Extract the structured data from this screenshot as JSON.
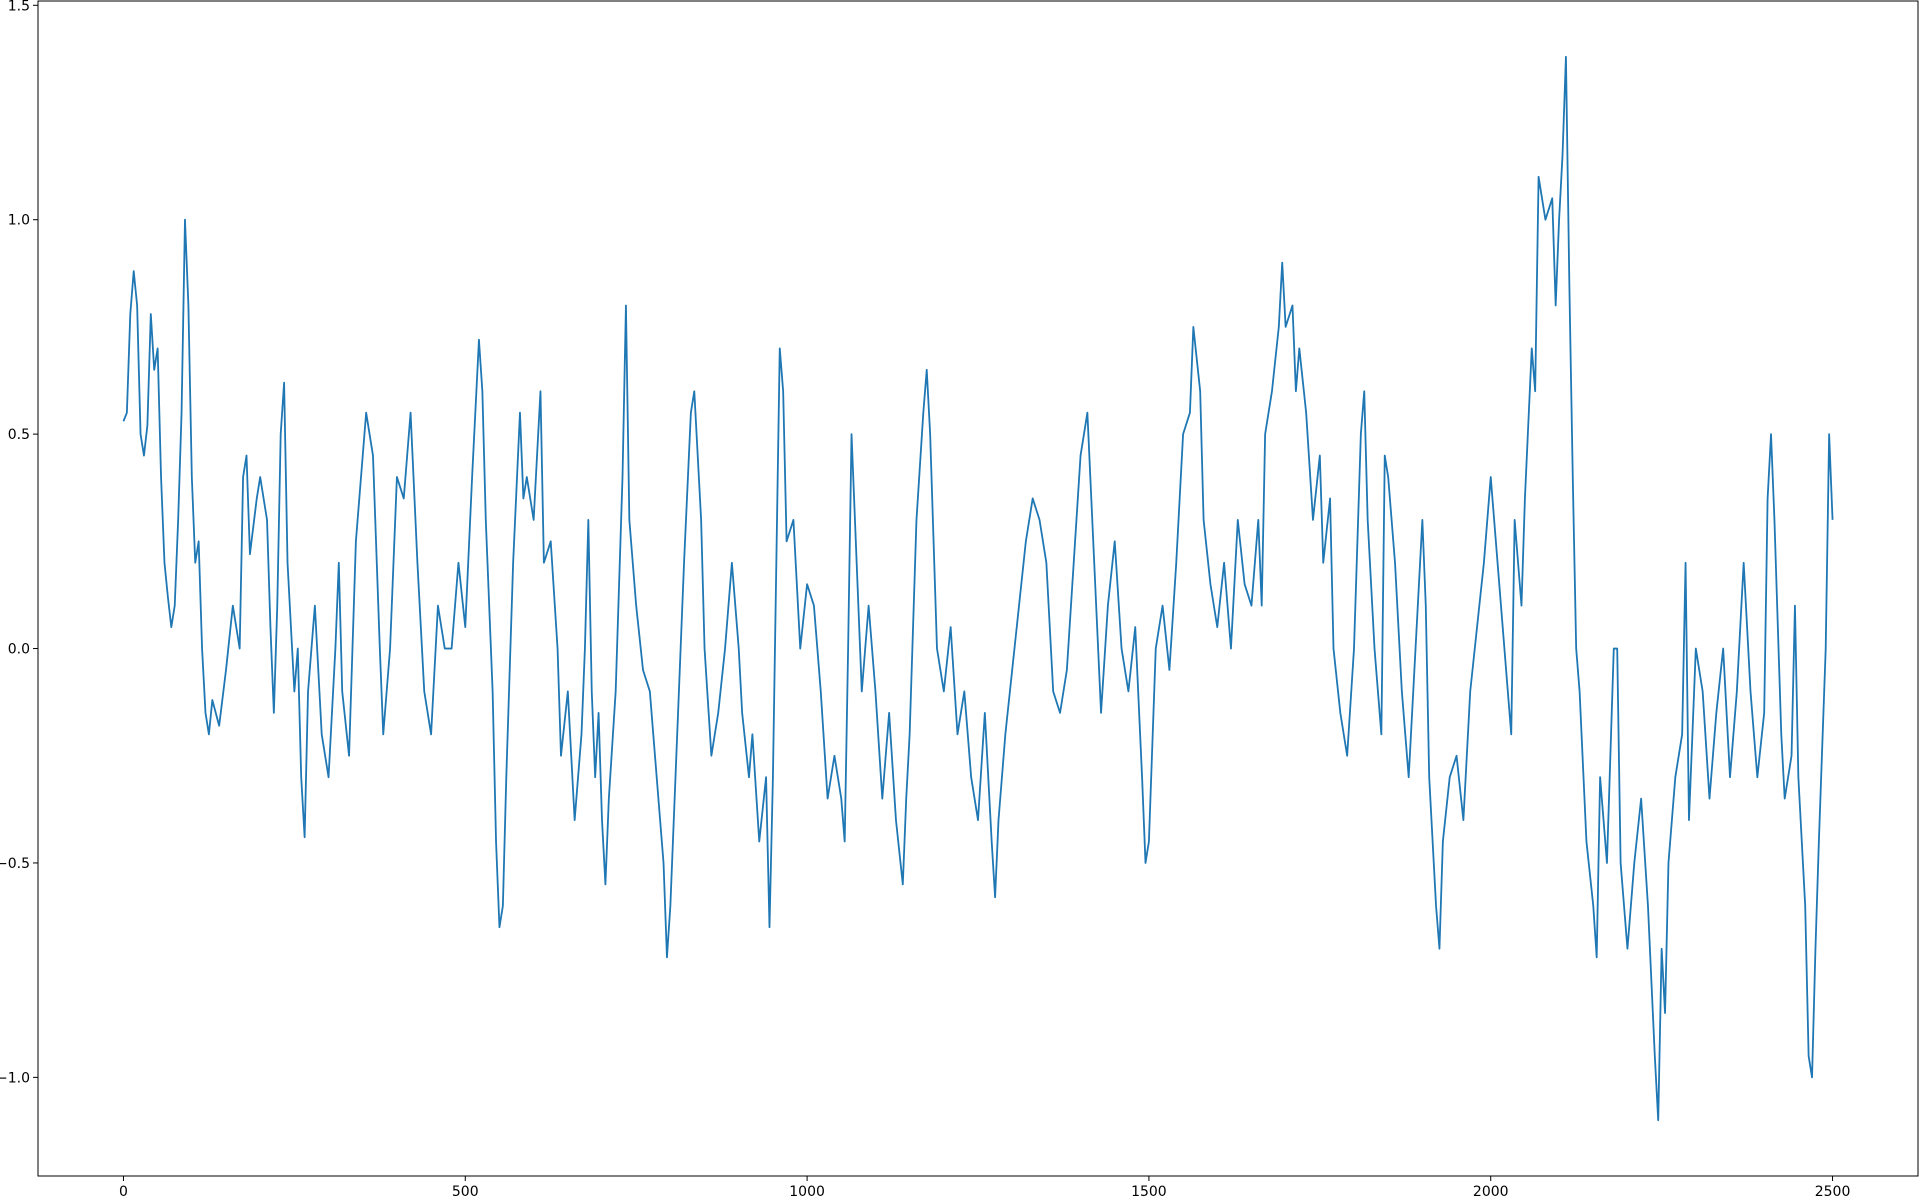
{
  "chart_data": {
    "type": "line",
    "x": [
      0,
      5,
      10,
      15,
      20,
      25,
      30,
      35,
      40,
      45,
      50,
      55,
      60,
      65,
      70,
      75,
      80,
      85,
      90,
      95,
      100,
      105,
      110,
      115,
      120,
      125,
      130,
      140,
      150,
      160,
      170,
      175,
      180,
      185,
      195,
      200,
      210,
      215,
      220,
      225,
      230,
      235,
      240,
      250,
      255,
      260,
      265,
      270,
      280,
      290,
      300,
      310,
      315,
      320,
      330,
      340,
      350,
      355,
      365,
      375,
      380,
      390,
      400,
      410,
      420,
      430,
      440,
      450,
      460,
      470,
      480,
      490,
      500,
      510,
      520,
      525,
      530,
      540,
      545,
      550,
      555,
      560,
      570,
      580,
      585,
      590,
      600,
      605,
      610,
      615,
      625,
      635,
      640,
      650,
      660,
      670,
      675,
      680,
      685,
      690,
      695,
      700,
      705,
      710,
      720,
      730,
      735,
      740,
      745,
      750,
      760,
      770,
      780,
      790,
      795,
      800,
      810,
      820,
      830,
      835,
      845,
      850,
      860,
      870,
      880,
      890,
      900,
      905,
      915,
      920,
      930,
      940,
      945,
      950,
      955,
      960,
      965,
      970,
      980,
      990,
      1000,
      1010,
      1020,
      1030,
      1040,
      1050,
      1055,
      1060,
      1065,
      1070,
      1080,
      1090,
      1100,
      1110,
      1120,
      1130,
      1140,
      1145,
      1150,
      1160,
      1170,
      1175,
      1180,
      1190,
      1200,
      1210,
      1220,
      1230,
      1240,
      1250,
      1260,
      1270,
      1275,
      1280,
      1290,
      1300,
      1310,
      1320,
      1330,
      1340,
      1350,
      1360,
      1370,
      1380,
      1390,
      1400,
      1410,
      1420,
      1430,
      1440,
      1450,
      1460,
      1470,
      1480,
      1490,
      1495,
      1500,
      1510,
      1520,
      1530,
      1540,
      1550,
      1560,
      1565,
      1575,
      1580,
      1590,
      1600,
      1610,
      1620,
      1630,
      1640,
      1650,
      1660,
      1665,
      1670,
      1680,
      1690,
      1695,
      1700,
      1710,
      1715,
      1720,
      1730,
      1740,
      1750,
      1755,
      1765,
      1770,
      1780,
      1790,
      1800,
      1810,
      1815,
      1820,
      1830,
      1840,
      1845,
      1850,
      1860,
      1870,
      1880,
      1890,
      1900,
      1905,
      1910,
      1920,
      1925,
      1930,
      1940,
      1950,
      1960,
      1970,
      1980,
      1990,
      2000,
      2010,
      2020,
      2030,
      2035,
      2045,
      2050,
      2060,
      2065,
      2070,
      2080,
      2090,
      2095,
      2100,
      2105,
      2110,
      2115,
      2120,
      2125,
      2130,
      2140,
      2150,
      2155,
      2160,
      2170,
      2180,
      2185,
      2190,
      2200,
      2210,
      2220,
      2230,
      2240,
      2245,
      2250,
      2255,
      2260,
      2270,
      2280,
      2285,
      2290,
      2300,
      2310,
      2320,
      2330,
      2340,
      2350,
      2360,
      2370,
      2380,
      2390,
      2400,
      2405,
      2410,
      2415,
      2425,
      2430,
      2440,
      2445,
      2450,
      2460,
      2465,
      2470,
      2475,
      2480,
      2490,
      2495,
      2500
    ],
    "series": [
      {
        "color": "#1f77b4",
        "values": [
          0.53,
          0.55,
          0.78,
          0.88,
          0.8,
          0.5,
          0.45,
          0.52,
          0.78,
          0.65,
          0.7,
          0.4,
          0.2,
          0.12,
          0.05,
          0.1,
          0.3,
          0.55,
          1.0,
          0.8,
          0.4,
          0.2,
          0.25,
          0.0,
          -0.15,
          -0.2,
          -0.12,
          -0.18,
          -0.05,
          0.1,
          0.0,
          0.4,
          0.45,
          0.22,
          0.35,
          0.4,
          0.3,
          0.05,
          -0.15,
          0.1,
          0.5,
          0.62,
          0.2,
          -0.1,
          0.0,
          -0.3,
          -0.44,
          -0.1,
          0.1,
          -0.2,
          -0.3,
          0.0,
          0.2,
          -0.1,
          -0.25,
          0.25,
          0.45,
          0.55,
          0.45,
          0.0,
          -0.2,
          0.0,
          0.4,
          0.35,
          0.55,
          0.2,
          -0.1,
          -0.2,
          0.1,
          0.0,
          0.0,
          0.2,
          0.05,
          0.4,
          0.72,
          0.6,
          0.3,
          -0.1,
          -0.45,
          -0.65,
          -0.6,
          -0.3,
          0.2,
          0.55,
          0.35,
          0.4,
          0.3,
          0.45,
          0.6,
          0.2,
          0.25,
          0.0,
          -0.25,
          -0.1,
          -0.4,
          -0.2,
          0.0,
          0.3,
          -0.1,
          -0.3,
          -0.15,
          -0.4,
          -0.55,
          -0.35,
          -0.1,
          0.4,
          0.8,
          0.3,
          0.2,
          0.1,
          -0.05,
          -0.1,
          -0.3,
          -0.5,
          -0.72,
          -0.6,
          -0.2,
          0.2,
          0.55,
          0.6,
          0.3,
          0.0,
          -0.25,
          -0.15,
          0.0,
          0.2,
          0.0,
          -0.15,
          -0.3,
          -0.2,
          -0.45,
          -0.3,
          -0.65,
          -0.3,
          0.2,
          0.7,
          0.6,
          0.25,
          0.3,
          0.0,
          0.15,
          0.1,
          -0.1,
          -0.35,
          -0.25,
          -0.35,
          -0.45,
          0.0,
          0.5,
          0.3,
          -0.1,
          0.1,
          -0.1,
          -0.35,
          -0.15,
          -0.4,
          -0.55,
          -0.35,
          -0.2,
          0.3,
          0.55,
          0.65,
          0.5,
          0.0,
          -0.1,
          0.05,
          -0.2,
          -0.1,
          -0.3,
          -0.4,
          -0.15,
          -0.45,
          -0.58,
          -0.4,
          -0.2,
          -0.05,
          0.1,
          0.25,
          0.35,
          0.3,
          0.2,
          -0.1,
          -0.15,
          -0.05,
          0.2,
          0.45,
          0.55,
          0.2,
          -0.15,
          0.1,
          0.25,
          0.0,
          -0.1,
          0.05,
          -0.3,
          -0.5,
          -0.45,
          0.0,
          0.1,
          -0.05,
          0.2,
          0.5,
          0.55,
          0.75,
          0.6,
          0.3,
          0.15,
          0.05,
          0.2,
          0.0,
          0.3,
          0.15,
          0.1,
          0.3,
          0.1,
          0.5,
          0.6,
          0.75,
          0.9,
          0.75,
          0.8,
          0.6,
          0.7,
          0.55,
          0.3,
          0.45,
          0.2,
          0.35,
          0.0,
          -0.15,
          -0.25,
          0.0,
          0.5,
          0.6,
          0.3,
          0.0,
          -0.2,
          0.45,
          0.4,
          0.2,
          -0.1,
          -0.3,
          0.0,
          0.3,
          0.1,
          -0.3,
          -0.6,
          -0.7,
          -0.45,
          -0.3,
          -0.25,
          -0.4,
          -0.1,
          0.05,
          0.2,
          0.4,
          0.2,
          0.0,
          -0.2,
          0.3,
          0.1,
          0.35,
          0.7,
          0.6,
          1.1,
          1.0,
          1.05,
          0.8,
          1.0,
          1.15,
          1.38,
          0.85,
          0.4,
          0.0,
          -0.1,
          -0.45,
          -0.6,
          -0.72,
          -0.3,
          -0.5,
          0.0,
          0.0,
          -0.5,
          -0.7,
          -0.5,
          -0.35,
          -0.6,
          -0.95,
          -1.1,
          -0.7,
          -0.85,
          -0.5,
          -0.3,
          -0.2,
          0.2,
          -0.4,
          0.0,
          -0.1,
          -0.35,
          -0.15,
          0.0,
          -0.3,
          -0.1,
          0.2,
          -0.1,
          -0.3,
          -0.15,
          0.35,
          0.5,
          0.3,
          -0.2,
          -0.35,
          -0.25,
          0.1,
          -0.3,
          -0.6,
          -0.95,
          -1.0,
          -0.7,
          -0.45,
          0.0,
          0.5,
          0.3
        ]
      }
    ],
    "xlim": [
      -125,
      2625
    ],
    "ylim": [
      -1.23,
      1.51
    ],
    "xticks": [
      0,
      500,
      1000,
      1500,
      2000,
      2500
    ],
    "yticks": [
      {
        "value": -1.0,
        "label": "−1.0"
      },
      {
        "value": -0.5,
        "label": "−0.5"
      },
      {
        "value": 0.0,
        "label": "0.0"
      },
      {
        "value": 0.5,
        "label": "0.5"
      },
      {
        "value": 1.0,
        "label": "1.0"
      },
      {
        "value": 1.5,
        "label": "1.5"
      }
    ]
  }
}
